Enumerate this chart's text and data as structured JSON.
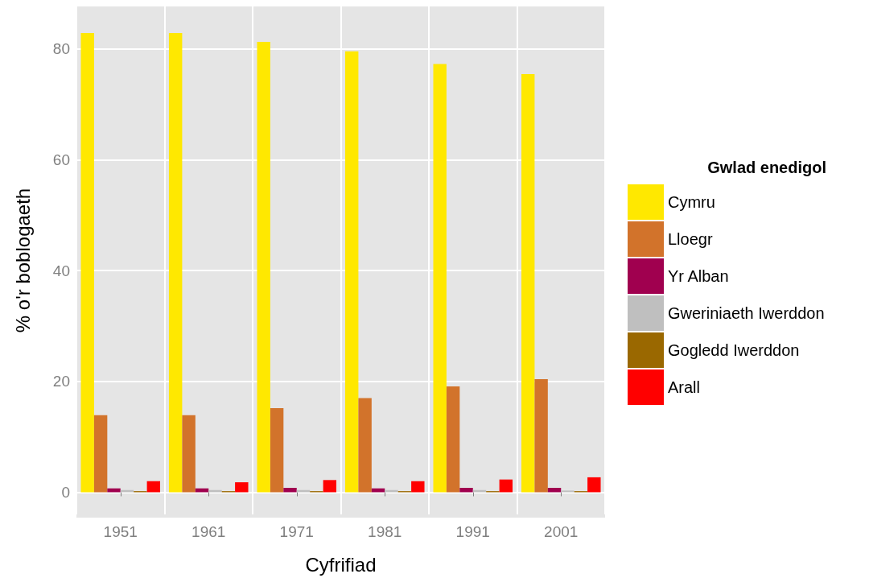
{
  "chart_data": {
    "type": "bar",
    "xlabel": "Cyfrifiad",
    "ylabel": "% o'r boblogaeth",
    "legend_title": "Gwlad enedigol",
    "categories": [
      "1951",
      "1961",
      "1971",
      "1981",
      "1991",
      "2001"
    ],
    "series": [
      {
        "name": "Cymru",
        "color": "#ffe800",
        "values": [
          82.9,
          82.9,
          81.3,
          79.6,
          77.3,
          75.5
        ]
      },
      {
        "name": "Lloegr",
        "color": "#d2732b",
        "values": [
          13.9,
          13.9,
          15.2,
          17.0,
          19.1,
          20.4
        ]
      },
      {
        "name": "Yr Alban",
        "color": "#a0004f",
        "values": [
          0.7,
          0.7,
          0.8,
          0.7,
          0.8,
          0.8
        ]
      },
      {
        "name": "Gweriniaeth Iwerddon",
        "color": "#bfbfbf",
        "values": [
          0.4,
          0.4,
          0.4,
          0.4,
          0.4,
          0.3
        ]
      },
      {
        "name": "Gogledd Iwerddon",
        "color": "#9a6800",
        "values": [
          0.2,
          0.2,
          0.2,
          0.2,
          0.2,
          0.2
        ]
      },
      {
        "name": "Arall",
        "color": "#ff0000",
        "values": [
          2.0,
          1.8,
          2.2,
          2.0,
          2.3,
          2.7
        ]
      }
    ],
    "ylim": [
      -4,
      87.7
    ],
    "yticks": [
      0,
      20,
      40,
      60,
      80
    ],
    "grid": true,
    "legend": "right"
  }
}
